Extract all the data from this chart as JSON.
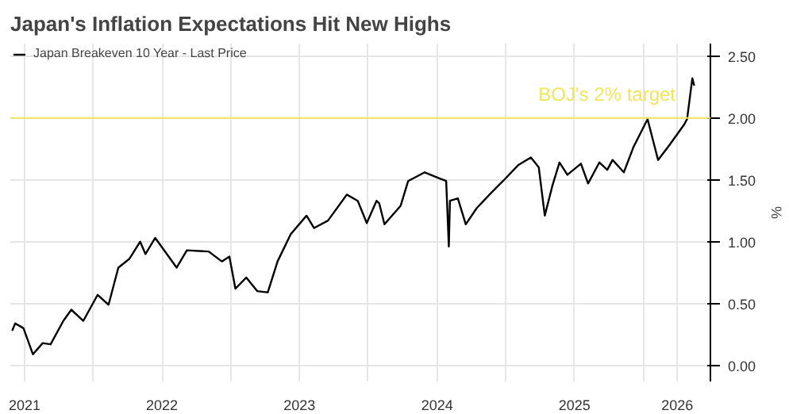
{
  "chart_data": {
    "type": "line",
    "title": "Japan's Inflation Expectations Hit New Highs",
    "ylabel": "%",
    "x": [
      "2021-05-30",
      "2021-06-07",
      "2021-06-29",
      "2021-07-24",
      "2021-08-19",
      "2021-09-09",
      "2021-10-13",
      "2021-11-03",
      "2021-12-05",
      "2022-01-12",
      "2022-02-10",
      "2022-03-08",
      "2022-04-06",
      "2022-05-05",
      "2022-05-19",
      "2022-06-14",
      "2022-08-10",
      "2022-09-06",
      "2022-11-03",
      "2022-12-08",
      "2022-12-28",
      "2023-01-13",
      "2023-02-11",
      "2023-03-12",
      "2023-04-09",
      "2023-05-05",
      "2023-06-09",
      "2023-07-21",
      "2023-08-10",
      "2023-09-16",
      "2023-11-05",
      "2023-12-04",
      "2023-12-28",
      "2024-01-23",
      "2024-01-30",
      "2024-02-13",
      "2024-03-27",
      "2024-04-16",
      "2024-05-30",
      "2024-07-09",
      "2024-07-26",
      "2024-08-02",
      "2024-08-05",
      "2024-08-26",
      "2024-09-16",
      "2024-10-15",
      "2024-11-21",
      "2024-12-24",
      "2025-02-03",
      "2025-03-08",
      "2025-03-29",
      "2025-04-14",
      "2025-05-04",
      "2025-05-23",
      "2025-06-13",
      "2025-07-19",
      "2025-08-07",
      "2025-09-06",
      "2025-09-27",
      "2025-10-11",
      "2025-11-10",
      "2025-12-05",
      "2026-01-12",
      "2026-02-09",
      "2026-03-11",
      "2026-04-20",
      "2026-04-27",
      "2026-05-11",
      "2026-05-16"
    ],
    "series": [
      {
        "name": "Japan Breakeven 10 Year - Last Price",
        "color": "#000000",
        "values": [
          0.28,
          0.34,
          0.3,
          0.09,
          0.18,
          0.17,
          0.36,
          0.45,
          0.36,
          0.57,
          0.49,
          0.79,
          0.86,
          1.0,
          0.9,
          1.03,
          0.79,
          0.93,
          0.92,
          0.84,
          0.88,
          0.62,
          0.71,
          0.6,
          0.59,
          0.84,
          1.06,
          1.21,
          1.11,
          1.17,
          1.38,
          1.33,
          1.15,
          1.33,
          1.31,
          1.14,
          1.29,
          1.49,
          1.56,
          1.51,
          1.49,
          0.96,
          1.33,
          1.35,
          1.14,
          1.27,
          1.39,
          1.49,
          1.62,
          1.68,
          1.6,
          1.21,
          1.45,
          1.64,
          1.54,
          1.63,
          1.47,
          1.64,
          1.58,
          1.66,
          1.56,
          1.76,
          1.99,
          1.66,
          1.78,
          1.95,
          1.99,
          2.32,
          2.26
        ]
      }
    ],
    "xlim": [
      "2021-05-25",
      "2026-06-28"
    ],
    "xticks": [
      {
        "value": "2021-07-02",
        "label": "2021"
      },
      {
        "value": "2022-01-01",
        "label": null
      },
      {
        "value": "2022-07-02",
        "label": "2022"
      },
      {
        "value": "2023-01-01",
        "label": null
      },
      {
        "value": "2023-07-02",
        "label": "2023"
      },
      {
        "value": "2024-01-01",
        "label": null
      },
      {
        "value": "2024-07-02",
        "label": "2024"
      },
      {
        "value": "2025-01-01",
        "label": null
      },
      {
        "value": "2025-07-02",
        "label": "2025"
      },
      {
        "value": "2026-01-01",
        "label": null
      },
      {
        "value": "2026-04-01",
        "label": "2026"
      }
    ],
    "ylim": [
      -0.13,
      2.6
    ],
    "yticks": [
      {
        "value": 0,
        "label": "0.00"
      },
      {
        "value": 0.5,
        "label": "0.50"
      },
      {
        "value": 1,
        "label": "1.00"
      },
      {
        "value": 1.5,
        "label": "1.50"
      },
      {
        "value": 2,
        "label": "2.00"
      },
      {
        "value": 2.5,
        "label": "2.50"
      }
    ],
    "ref_lines": [
      {
        "axis": "y",
        "value": 2,
        "label": "BOJ's 2% target",
        "color": "#f2e55c"
      }
    ],
    "grid": true,
    "legend": "top left",
    "line_style": "solid",
    "marker": "none"
  }
}
